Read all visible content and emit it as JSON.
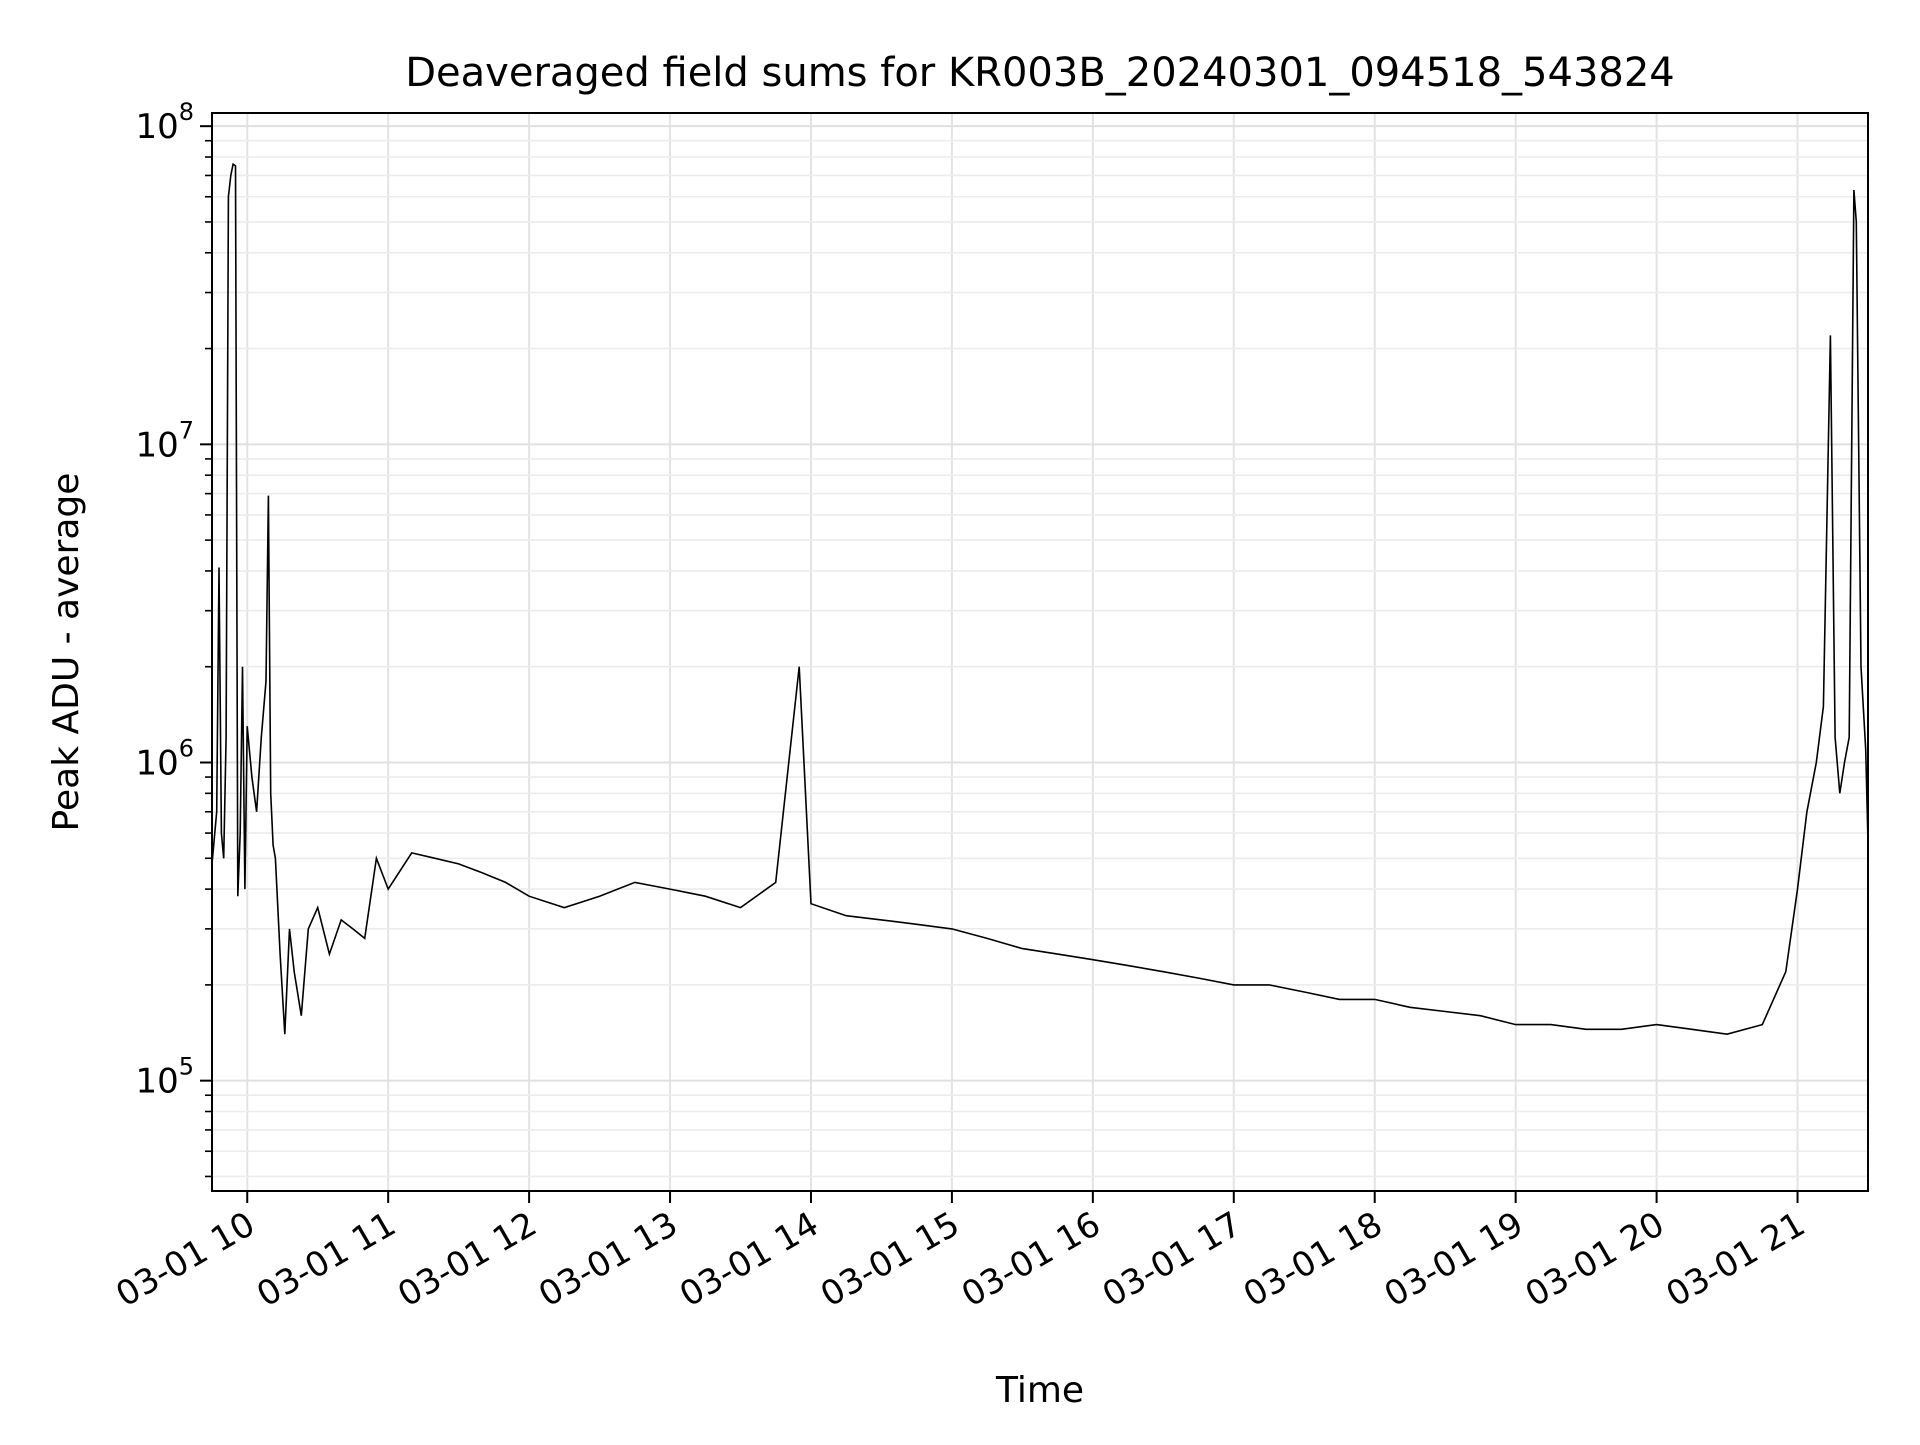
{
  "chart_data": {
    "type": "line",
    "title": "Deaveraged field sums for KR003B_20240301_094518_543824",
    "xlabel": "Time",
    "ylabel": "Peak ADU - average",
    "yscale": "log",
    "ylim": [
      45000,
      110000000
    ],
    "xlim": [
      "2024-03-01 09:45",
      "2024-03-01 21:30"
    ],
    "grid": true,
    "minor_grid": true,
    "line_color": "#000000",
    "x_ticks": [
      {
        "value": "2024-03-01 10:00",
        "label": "03-01 10"
      },
      {
        "value": "2024-03-01 11:00",
        "label": "03-01 11"
      },
      {
        "value": "2024-03-01 12:00",
        "label": "03-01 12"
      },
      {
        "value": "2024-03-01 13:00",
        "label": "03-01 13"
      },
      {
        "value": "2024-03-01 14:00",
        "label": "03-01 14"
      },
      {
        "value": "2024-03-01 15:00",
        "label": "03-01 15"
      },
      {
        "value": "2024-03-01 16:00",
        "label": "03-01 16"
      },
      {
        "value": "2024-03-01 17:00",
        "label": "03-01 17"
      },
      {
        "value": "2024-03-01 18:00",
        "label": "03-01 18"
      },
      {
        "value": "2024-03-01 19:00",
        "label": "03-01 19"
      },
      {
        "value": "2024-03-01 20:00",
        "label": "03-01 20"
      },
      {
        "value": "2024-03-01 21:00",
        "label": "03-01 21"
      }
    ],
    "y_ticks": [
      {
        "value": 100000,
        "base": "10",
        "exp": "5"
      },
      {
        "value": 1000000,
        "base": "10",
        "exp": "6"
      },
      {
        "value": 10000000,
        "base": "10",
        "exp": "7"
      },
      {
        "value": 100000000,
        "base": "10",
        "exp": "8"
      }
    ],
    "series": [
      {
        "x": [
          "2024-03-01 09:45",
          "2024-03-01 09:47",
          "2024-03-01 09:48",
          "2024-03-01 09:49",
          "2024-03-01 09:50",
          "2024-03-01 09:51",
          "2024-03-01 09:52",
          "2024-03-01 09:53",
          "2024-03-01 09:54",
          "2024-03-01 09:55",
          "2024-03-01 09:56",
          "2024-03-01 09:57",
          "2024-03-01 09:58",
          "2024-03-01 09:59",
          "2024-03-01 10:00",
          "2024-03-01 10:02",
          "2024-03-01 10:04",
          "2024-03-01 10:06",
          "2024-03-01 10:08",
          "2024-03-01 10:09",
          "2024-03-01 10:10",
          "2024-03-01 10:11",
          "2024-03-01 10:12",
          "2024-03-01 10:14",
          "2024-03-01 10:16",
          "2024-03-01 10:18",
          "2024-03-01 10:20",
          "2024-03-01 10:23",
          "2024-03-01 10:26",
          "2024-03-01 10:30",
          "2024-03-01 10:35",
          "2024-03-01 10:40",
          "2024-03-01 10:45",
          "2024-03-01 10:50",
          "2024-03-01 10:55",
          "2024-03-01 11:00",
          "2024-03-01 11:10",
          "2024-03-01 11:20",
          "2024-03-01 11:30",
          "2024-03-01 11:40",
          "2024-03-01 11:50",
          "2024-03-01 12:00",
          "2024-03-01 12:15",
          "2024-03-01 12:30",
          "2024-03-01 12:45",
          "2024-03-01 13:00",
          "2024-03-01 13:15",
          "2024-03-01 13:30",
          "2024-03-01 13:45",
          "2024-03-01 13:55",
          "2024-03-01 14:00",
          "2024-03-01 14:15",
          "2024-03-01 14:30",
          "2024-03-01 14:45",
          "2024-03-01 15:00",
          "2024-03-01 15:15",
          "2024-03-01 15:30",
          "2024-03-01 15:45",
          "2024-03-01 16:00",
          "2024-03-01 16:15",
          "2024-03-01 16:30",
          "2024-03-01 16:45",
          "2024-03-01 17:00",
          "2024-03-01 17:15",
          "2024-03-01 17:30",
          "2024-03-01 17:45",
          "2024-03-01 18:00",
          "2024-03-01 18:15",
          "2024-03-01 18:30",
          "2024-03-01 18:45",
          "2024-03-01 19:00",
          "2024-03-01 19:15",
          "2024-03-01 19:30",
          "2024-03-01 19:45",
          "2024-03-01 20:00",
          "2024-03-01 20:15",
          "2024-03-01 20:30",
          "2024-03-01 20:45",
          "2024-03-01 20:55",
          "2024-03-01 21:00",
          "2024-03-01 21:04",
          "2024-03-01 21:08",
          "2024-03-01 21:11",
          "2024-03-01 21:14",
          "2024-03-01 21:16",
          "2024-03-01 21:18",
          "2024-03-01 21:20",
          "2024-03-01 21:22",
          "2024-03-01 21:24",
          "2024-03-01 21:25",
          "2024-03-01 21:27",
          "2024-03-01 21:29",
          "2024-03-01 21:30"
        ],
        "y": [
          480000,
          700000,
          4100000,
          600000,
          500000,
          1200000,
          60000000,
          70000000,
          76000000,
          75000000,
          380000,
          600000,
          2000000,
          400000,
          1300000,
          900000,
          700000,
          1200000,
          1800000,
          6900000,
          800000,
          550000,
          500000,
          250000,
          140000,
          300000,
          220000,
          160000,
          300000,
          350000,
          250000,
          320000,
          300000,
          280000,
          500000,
          400000,
          520000,
          500000,
          480000,
          450000,
          420000,
          380000,
          350000,
          380000,
          420000,
          400000,
          380000,
          350000,
          420000,
          2000000,
          360000,
          330000,
          320000,
          310000,
          300000,
          280000,
          260000,
          250000,
          240000,
          230000,
          220000,
          210000,
          200000,
          200000,
          190000,
          180000,
          180000,
          170000,
          165000,
          160000,
          150000,
          150000,
          145000,
          145000,
          150000,
          145000,
          140000,
          150000,
          220000,
          400000,
          700000,
          1000000,
          1500000,
          22000000,
          1200000,
          800000,
          1000000,
          1200000,
          63000000,
          50000000,
          2000000,
          1100000,
          560000
        ]
      }
    ]
  }
}
